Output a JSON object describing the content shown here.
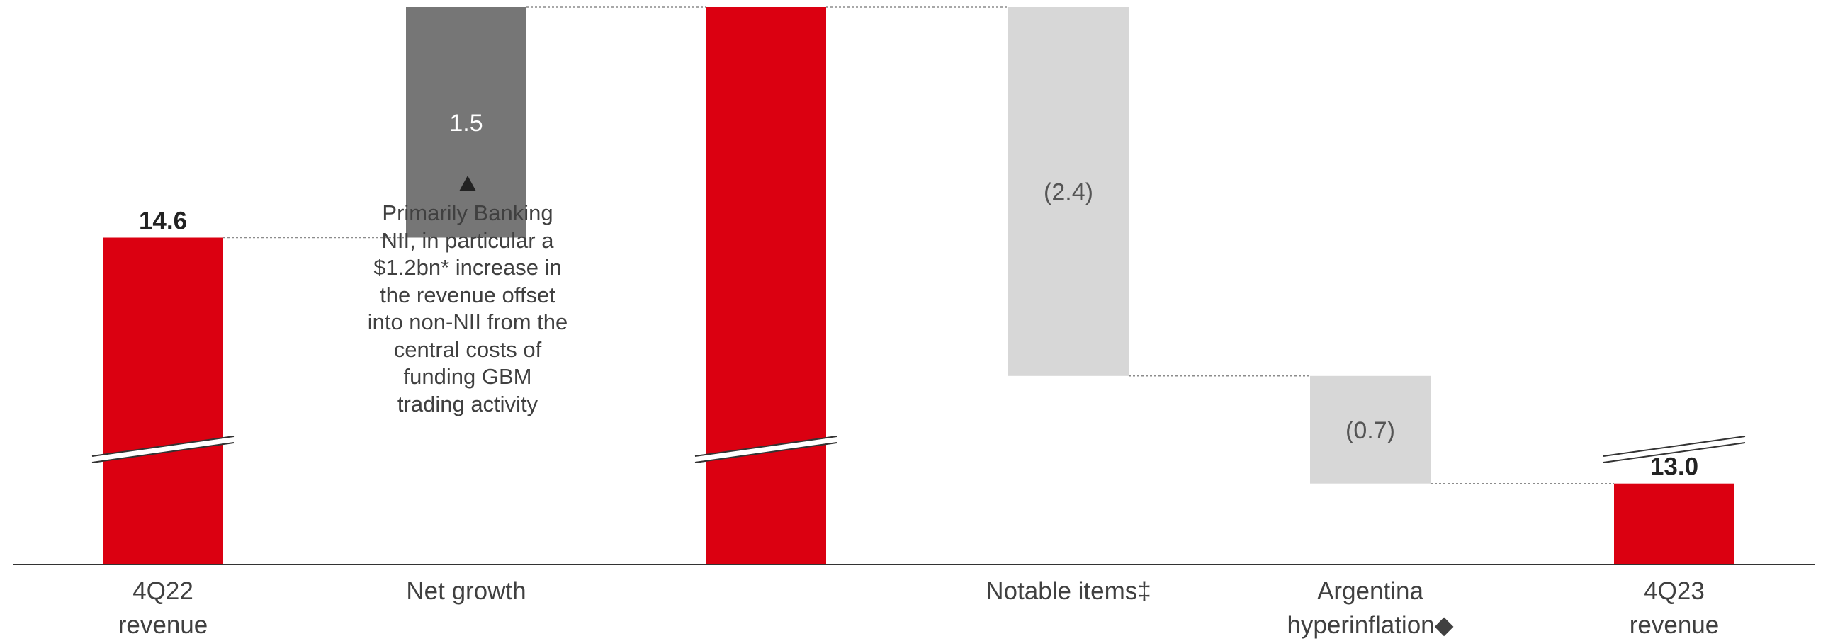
{
  "chart_data": {
    "type": "bar",
    "subtype": "waterfall",
    "categories": [
      "4Q22\nrevenue",
      "Net growth",
      "",
      "Notable items‡",
      "Argentina\nhyperinflation◆",
      "4Q23\nrevenue"
    ],
    "bars": [
      {
        "kind": "total",
        "value": 14.6,
        "label": "14.6"
      },
      {
        "kind": "increase",
        "value": 1.5,
        "label": "1.5"
      },
      {
        "kind": "total",
        "value": 16.1,
        "label": ""
      },
      {
        "kind": "decrease",
        "value": -2.4,
        "label": "(2.4)"
      },
      {
        "kind": "decrease",
        "value": -0.7,
        "label": "(0.7)"
      },
      {
        "kind": "total",
        "value": 13.0,
        "label": "13.0"
      }
    ],
    "axis_break": true,
    "colors": {
      "total": "#db0011",
      "increase": "#767676",
      "decrease": "#d7d7d7",
      "connector": "#8c8c8c",
      "axis": "#333333"
    }
  },
  "annotation": {
    "lines": [
      "Primarily Banking",
      "NII, in particular a",
      "$1.2bn* increase in",
      "the revenue offset",
      "into non-NII from the",
      "central costs of",
      "funding GBM",
      "trading activity"
    ]
  }
}
